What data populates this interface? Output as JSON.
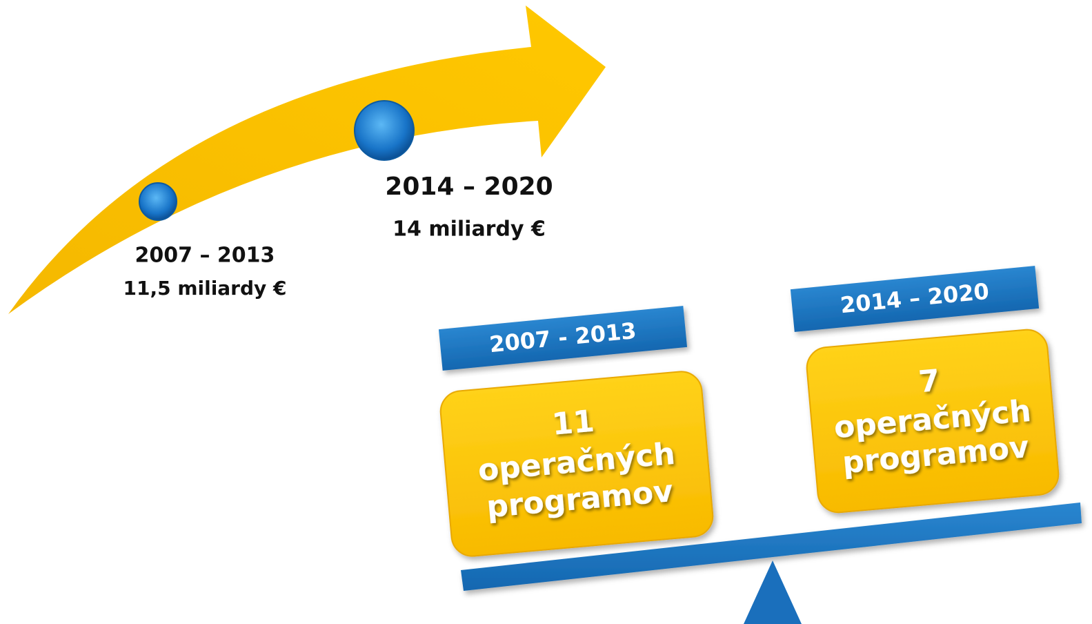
{
  "timeline": [
    {
      "period": "2007 – 2013",
      "amount": "11,5 miliardy €"
    },
    {
      "period": "2014 – 2020",
      "amount": "14 miliardy €"
    }
  ],
  "balance": [
    {
      "period": "2007 - 2013",
      "count": "11",
      "line1": "operačných",
      "line2": "programov"
    },
    {
      "period": "2014 – 2020",
      "count": "7",
      "line1": "operačných",
      "line2": "programov"
    }
  ]
}
